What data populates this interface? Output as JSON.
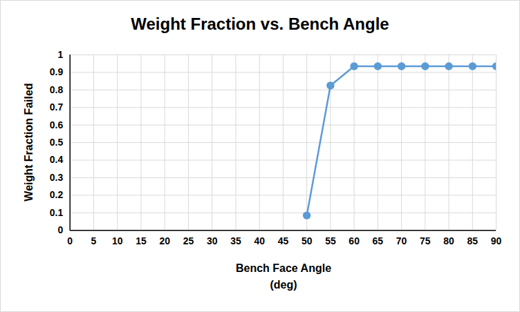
{
  "chart_data": {
    "type": "line",
    "title": "Weight Fraction vs. Bench Angle",
    "x_label": "Bench Face Angle\n(deg)",
    "y_label": "Weight Fraction Failed",
    "x": [
      50,
      55,
      60,
      65,
      70,
      75,
      80,
      85,
      90
    ],
    "values": [
      0.085,
      0.825,
      0.935,
      0.935,
      0.935,
      0.935,
      0.935,
      0.935,
      0.935
    ],
    "color": "#5b9bd5",
    "marker": "circle",
    "line_style": "solid",
    "xlim": [
      0,
      90
    ],
    "xticks": [
      0,
      5,
      10,
      15,
      20,
      25,
      30,
      35,
      40,
      45,
      50,
      55,
      60,
      65,
      70,
      75,
      80,
      85,
      90
    ],
    "ylim": [
      0,
      1
    ],
    "yticks": [
      0,
      0.1,
      0.2,
      0.3,
      0.4,
      0.5,
      0.6,
      0.7,
      0.8,
      0.9,
      1
    ],
    "grid": true
  }
}
